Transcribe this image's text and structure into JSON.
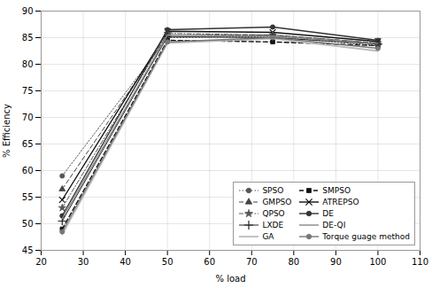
{
  "chart_data": {
    "type": "line",
    "x": [
      25,
      50,
      75,
      100
    ],
    "series": [
      {
        "name": "SPSO",
        "color": "#555555",
        "line_style": "dotted",
        "marker": "circle",
        "values": [
          59.0,
          85.0,
          85.2,
          83.5
        ]
      },
      {
        "name": "SMPSO",
        "color": "#111111",
        "line_style": "dashed",
        "marker": "square",
        "values": [
          49.0,
          84.5,
          84.2,
          83.5
        ]
      },
      {
        "name": "GMPSO",
        "color": "#444444",
        "line_style": "dashed",
        "marker": "triangle",
        "values": [
          56.5,
          85.5,
          85.5,
          84.0
        ]
      },
      {
        "name": "ATREPSO",
        "color": "#111111",
        "line_style": "solid",
        "marker": "times",
        "values": [
          54.5,
          86.2,
          86.0,
          84.3
        ]
      },
      {
        "name": "QPSO",
        "color": "#555555",
        "line_style": "dashdot",
        "marker": "star",
        "values": [
          53.0,
          85.8,
          85.5,
          84.0
        ]
      },
      {
        "name": "DE",
        "color": "#333333",
        "line_style": "solid",
        "marker": "circle",
        "values": [
          51.5,
          86.5,
          87.0,
          84.5
        ]
      },
      {
        "name": "LXDE",
        "color": "#222222",
        "line_style": "solid",
        "marker": "plus",
        "values": [
          50.5,
          85.2,
          85.0,
          83.8
        ]
      },
      {
        "name": "DE-QI",
        "color": "#888888",
        "line_style": "solid",
        "marker": "none",
        "values": [
          51.0,
          85.5,
          85.3,
          83.9
        ]
      },
      {
        "name": "GA",
        "color": "#bbbbbb",
        "line_style": "solid",
        "marker": "none",
        "values": [
          48.0,
          84.0,
          84.8,
          82.5
        ]
      },
      {
        "name": "Torque guage method",
        "color": "#777777",
        "line_style": "solid",
        "marker": "circle",
        "values": [
          48.5,
          84.2,
          85.0,
          83.0
        ]
      }
    ],
    "xlabel": "% load",
    "ylabel": "% Efficiency",
    "xlim": [
      20,
      110
    ],
    "ylim": [
      45,
      90
    ],
    "xticks": [
      20,
      30,
      40,
      50,
      60,
      70,
      80,
      90,
      100,
      110
    ],
    "yticks": [
      45,
      50,
      55,
      60,
      65,
      70,
      75,
      80,
      85,
      90
    ],
    "grid": true,
    "legend": "lower right"
  }
}
